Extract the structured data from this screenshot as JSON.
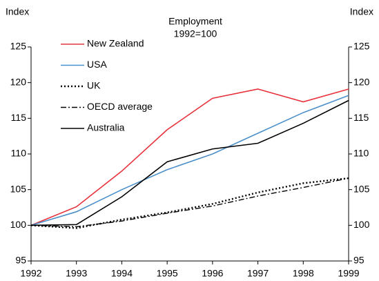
{
  "chart_data": {
    "type": "line",
    "title": "Employment",
    "subtitle": "1992=100",
    "y_label": "Index",
    "y2_label": "Index",
    "x": [
      1992,
      1993,
      1994,
      1995,
      1996,
      1997,
      1998,
      1999
    ],
    "xlim": [
      1992,
      1999
    ],
    "xticks": [
      1992,
      1993,
      1994,
      1995,
      1996,
      1997,
      1998,
      1999
    ],
    "ylim": [
      95,
      125
    ],
    "yticks": [
      95,
      100,
      105,
      110,
      115,
      120,
      125
    ],
    "y2lim": [
      95,
      125
    ],
    "y2ticks": [
      95,
      100,
      105,
      110,
      115,
      120,
      125
    ],
    "legend": "upper left",
    "series": [
      {
        "name": "New Zealand",
        "color": "#e8303a",
        "linestyle": "solid",
        "values": [
          100,
          102.6,
          107.6,
          113.4,
          117.8,
          119.1,
          117.3,
          119.1
        ]
      },
      {
        "name": "USA",
        "color": "#4a8fc9",
        "linestyle": "solid",
        "values": [
          100,
          101.9,
          105.0,
          107.8,
          110.0,
          112.9,
          115.8,
          118.2
        ]
      },
      {
        "name": "UK",
        "color": "#000000",
        "linestyle": "dotted",
        "values": [
          100,
          99.6,
          100.8,
          101.8,
          103.0,
          104.6,
          105.9,
          106.6
        ]
      },
      {
        "name": "OECD average",
        "color": "#000000",
        "linestyle": "dashdot",
        "values": [
          100,
          99.8,
          100.6,
          101.7,
          102.7,
          104.1,
          105.3,
          106.6
        ]
      },
      {
        "name": "Australia",
        "color": "#000000",
        "linestyle": "solid",
        "values": [
          100,
          100.1,
          104.0,
          108.9,
          110.7,
          111.5,
          114.3,
          117.5
        ]
      }
    ]
  }
}
